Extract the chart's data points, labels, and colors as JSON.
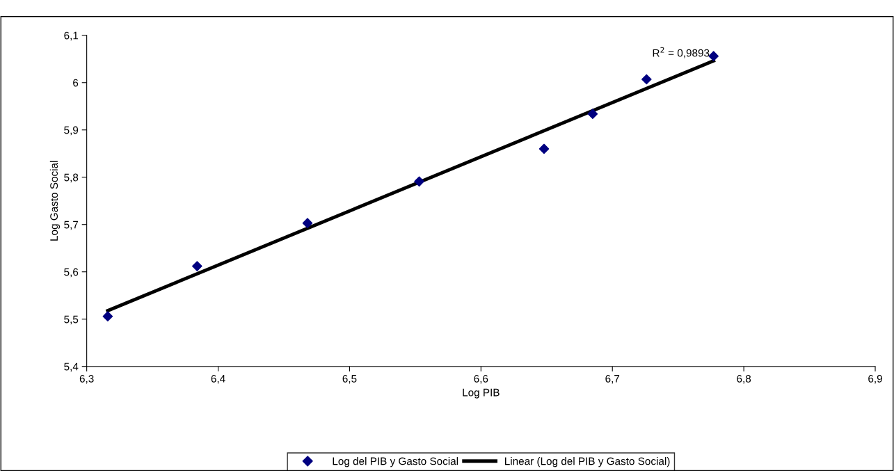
{
  "chart_data": {
    "type": "scatter",
    "xlabel": "Log PIB",
    "ylabel": "Log Gasto Social",
    "series": [
      {
        "name": "Log del PIB y Gasto Social",
        "color": "#000080",
        "marker": "diamond",
        "x": [
          6.316,
          6.384,
          6.468,
          6.553,
          6.648,
          6.685,
          6.726,
          6.777
        ],
        "values": [
          5.506,
          5.612,
          5.703,
          5.791,
          5.86,
          5.934,
          6.007,
          6.056
        ]
      },
      {
        "name": "Linear (Log del PIB y Gasto Social)",
        "type": "line",
        "color": "#000000",
        "x": [
          6.316,
          6.777
        ],
        "values": [
          5.518,
          6.046
        ]
      }
    ],
    "annotations": [
      {
        "text": "R$^{2}$ = 0,9893",
        "x": 6.777,
        "y": 6.046
      }
    ],
    "xlim": [
      6.3,
      6.9
    ],
    "xticks": [
      {
        "value": 6.3,
        "label": "6,3"
      },
      {
        "value": 6.4,
        "label": "6,4"
      },
      {
        "value": 6.5,
        "label": "6,5"
      },
      {
        "value": 6.6,
        "label": "6,6"
      },
      {
        "value": 6.7,
        "label": "6,7"
      },
      {
        "value": 6.8,
        "label": "6,8"
      },
      {
        "value": 6.9,
        "label": "6,9"
      }
    ],
    "ylim": [
      5.4,
      6.1
    ],
    "yticks": [
      {
        "value": 5.4,
        "label": "5,4"
      },
      {
        "value": 5.5,
        "label": "5,5"
      },
      {
        "value": 5.6,
        "label": "5,6"
      },
      {
        "value": 5.7,
        "label": "5,7"
      },
      {
        "value": 5.8,
        "label": "5,8"
      },
      {
        "value": 5.9,
        "label": "5,9"
      },
      6,
      {
        "value": 6.1,
        "label": "6,1"
      }
    ],
    "grid": false,
    "legend": "bottom"
  }
}
